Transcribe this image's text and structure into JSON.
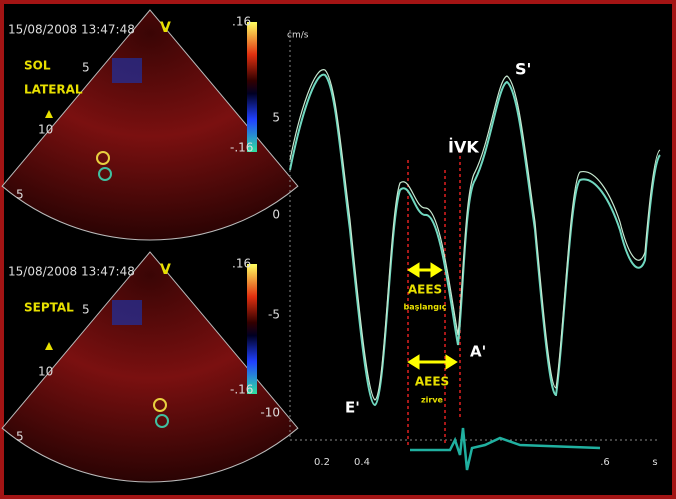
{
  "left_panels": [
    {
      "timestamp": "15/08/2008 13:47:48",
      "mode": "V",
      "scale_max": ".16",
      "scale_min": "-.16",
      "view_label": [
        "SOL",
        "LATERAL"
      ],
      "depth_labels": [
        "5",
        "10",
        "5"
      ]
    },
    {
      "timestamp": "15/08/2008 13:47:48",
      "mode": "V",
      "scale_max": ".16",
      "scale_min": "-.16",
      "view_label": [
        "SEPTAL"
      ],
      "depth_labels": [
        "5",
        "10",
        "5"
      ]
    }
  ],
  "right_plot": {
    "unit": "cm/s",
    "y_labels": [
      "5",
      "0",
      "-5",
      "-10"
    ],
    "x_labels": [
      "0.2",
      "0.4",
      ".6",
      "s"
    ],
    "annotations": {
      "s_wave": "S'",
      "ivk": "İVK",
      "e_wave": "E'",
      "a_wave": "A'",
      "aees_1": "AEES",
      "aees_1_sub": "başlangıç",
      "aees_2": "AEES",
      "aees_2_sub": "zirve"
    }
  }
}
